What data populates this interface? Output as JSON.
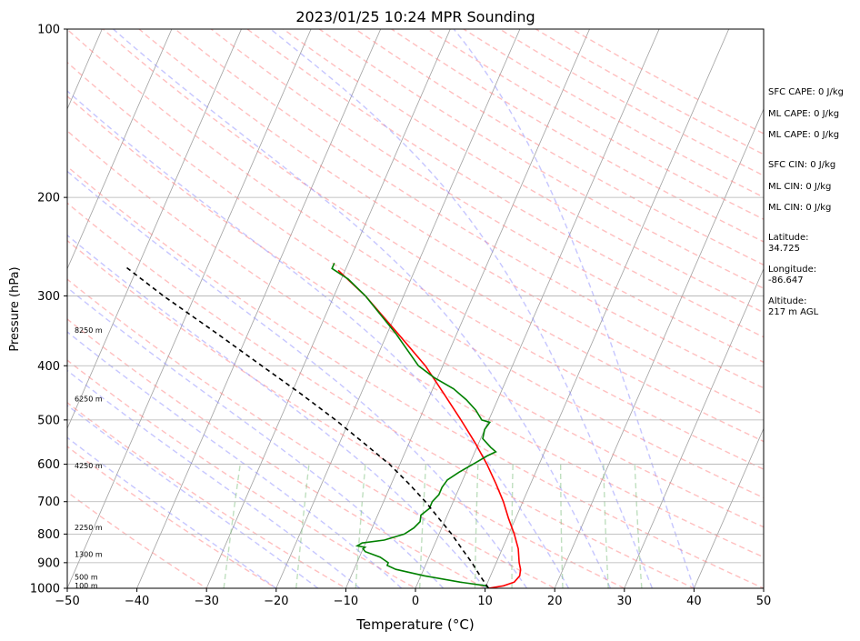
{
  "chart_data": {
    "type": "line",
    "title": "2023/01/25 10:24 MPR Sounding",
    "xlabel": "Temperature (°C)",
    "ylabel": "Pressure (hPa)",
    "xlim": [
      -50,
      50
    ],
    "ylim": [
      1000,
      100
    ],
    "y_scale": "log",
    "skew_deg_per_decade": 35,
    "x_ticks": [
      -50,
      -40,
      -30,
      -20,
      -10,
      0,
      10,
      20,
      30,
      40,
      50
    ],
    "x_tick_labels": [
      "−50",
      "−40",
      "−30",
      "−20",
      "−10",
      "0",
      "10",
      "20",
      "30",
      "40",
      "50"
    ],
    "y_ticks": [
      1000,
      900,
      800,
      700,
      600,
      500,
      400,
      300,
      200,
      100
    ],
    "y_tick_labels": [
      "1000",
      "900",
      "800",
      "700",
      "600",
      "500",
      "400",
      "300",
      "200",
      "100"
    ],
    "grid": true,
    "series": [
      {
        "role": "temperature",
        "color": "#ff0000",
        "points": [
          [
            1000,
            10.5
          ],
          [
            990,
            12.5
          ],
          [
            975,
            13.8
          ],
          [
            950,
            14.2
          ],
          [
            925,
            13.9
          ],
          [
            900,
            13.3
          ],
          [
            850,
            12.3
          ],
          [
            800,
            10.8
          ],
          [
            750,
            9.0
          ],
          [
            700,
            7.2
          ],
          [
            650,
            5.0
          ],
          [
            600,
            2.5
          ],
          [
            550,
            -0.5
          ],
          [
            500,
            -4.0
          ],
          [
            450,
            -8.0
          ],
          [
            400,
            -12.5
          ],
          [
            350,
            -18.5
          ],
          [
            300,
            -25.5
          ],
          [
            270,
            -31.0
          ]
        ]
      },
      {
        "role": "dewpoint",
        "color": "#008000",
        "points": [
          [
            1000,
            10.5
          ],
          [
            990,
            10.0
          ],
          [
            975,
            6.0
          ],
          [
            950,
            0.5
          ],
          [
            925,
            -4.0
          ],
          [
            910,
            -5.5
          ],
          [
            900,
            -5.5
          ],
          [
            880,
            -7.0
          ],
          [
            860,
            -9.5
          ],
          [
            850,
            -10.0
          ],
          [
            845,
            -9.8
          ],
          [
            840,
            -11.0
          ],
          [
            830,
            -10.5
          ],
          [
            820,
            -7.5
          ],
          [
            800,
            -5.0
          ],
          [
            780,
            -4.0
          ],
          [
            760,
            -3.5
          ],
          [
            740,
            -3.8
          ],
          [
            720,
            -3.0
          ],
          [
            700,
            -3.0
          ],
          [
            680,
            -2.5
          ],
          [
            660,
            -2.5
          ],
          [
            640,
            -2.2
          ],
          [
            620,
            -1.0
          ],
          [
            600,
            0.5
          ],
          [
            580,
            2.0
          ],
          [
            570,
            3.0
          ],
          [
            560,
            2.0
          ],
          [
            540,
            0.3
          ],
          [
            520,
            0.0
          ],
          [
            505,
            0.3
          ],
          [
            500,
            -1.0
          ],
          [
            480,
            -2.5
          ],
          [
            460,
            -4.5
          ],
          [
            440,
            -7.0
          ],
          [
            420,
            -10.5
          ],
          [
            400,
            -13.5
          ],
          [
            350,
            -18.8
          ],
          [
            300,
            -25.5
          ],
          [
            280,
            -29.0
          ],
          [
            268,
            -32.0
          ],
          [
            262,
            -32.0
          ]
        ]
      },
      {
        "role": "parcel",
        "color": "#000000",
        "dash": "5,4",
        "points": [
          [
            1000,
            10.5
          ],
          [
            950,
            8.5
          ],
          [
            900,
            6.5
          ],
          [
            850,
            4.2
          ],
          [
            800,
            1.8
          ],
          [
            750,
            -1.0
          ],
          [
            700,
            -4.0
          ],
          [
            650,
            -7.5
          ],
          [
            600,
            -11.5
          ],
          [
            550,
            -16.5
          ],
          [
            500,
            -22.0
          ],
          [
            450,
            -28.5
          ],
          [
            400,
            -36.0
          ],
          [
            350,
            -44.5
          ],
          [
            300,
            -54.5
          ],
          [
            265,
            -62.0
          ]
        ]
      }
    ],
    "height_labels": [
      {
        "text": "100 m",
        "p": 988
      },
      {
        "text": "500 m",
        "p": 954
      },
      {
        "text": "1300 m",
        "p": 869
      },
      {
        "text": "2250 m",
        "p": 778
      },
      {
        "text": "4250 m",
        "p": 603
      },
      {
        "text": "6250 m",
        "p": 458
      },
      {
        "text": "8250 m",
        "p": 345
      }
    ],
    "annotations": [
      "SFC CAPE: 0 J/kg",
      "ML CAPE: 0 J/kg",
      "ML CAPE: 0 J/kg",
      "SFC CIN: 0 J/kg",
      "ML CIN: 0 J/kg",
      "ML CIN: 0 J/kg",
      "Latitude:",
      "34.725",
      "Longitude:",
      "-86.647",
      "Altitude:",
      "217 m AGL"
    ],
    "background_lines": {
      "isotherms": "#a0a0a0",
      "dry_adiabats": "#ff8080",
      "moist_adiabats": "#8080ff",
      "mixing_ratio": "#80c080"
    }
  }
}
